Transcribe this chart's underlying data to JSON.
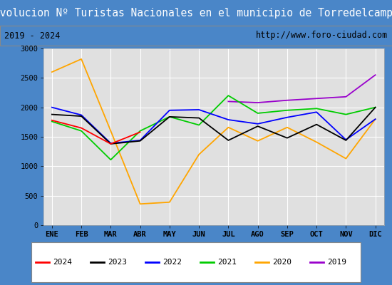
{
  "title": "Evolucion Nº Turistas Nacionales en el municipio de Torredelcampo",
  "subtitle_left": "2019 - 2024",
  "subtitle_right": "http://www.foro-ciudad.com",
  "months": [
    "ENE",
    "FEB",
    "MAR",
    "ABR",
    "MAY",
    "JUN",
    "JUL",
    "AGO",
    "SEP",
    "OCT",
    "NOV",
    "DIC"
  ],
  "ylim": [
    0,
    3000
  ],
  "yticks": [
    0,
    500,
    1000,
    1500,
    2000,
    2500,
    3000
  ],
  "series": {
    "2024": {
      "color": "#ff0000",
      "values": [
        1780,
        1650,
        1380,
        1580,
        null,
        null,
        null,
        null,
        null,
        null,
        null,
        null
      ]
    },
    "2023": {
      "color": "#000000",
      "values": [
        1880,
        1850,
        1380,
        1430,
        1840,
        1820,
        1440,
        1680,
        1480,
        1710,
        1440,
        2000
      ]
    },
    "2022": {
      "color": "#0000ff",
      "values": [
        2000,
        1870,
        1390,
        1440,
        1950,
        1960,
        1790,
        1720,
        1830,
        1920,
        1450,
        1800
      ]
    },
    "2021": {
      "color": "#00cc00",
      "values": [
        1760,
        1600,
        1110,
        1600,
        1840,
        1700,
        2200,
        1900,
        1950,
        1980,
        1880,
        2000
      ]
    },
    "2020": {
      "color": "#ffa500",
      "values": [
        2600,
        2820,
        1600,
        360,
        390,
        1200,
        1660,
        1430,
        1660,
        1410,
        1130,
        1800
      ]
    },
    "2019": {
      "color": "#9900cc",
      "values": [
        null,
        null,
        null,
        null,
        null,
        null,
        2100,
        2080,
        2120,
        2150,
        2180,
        2550
      ]
    }
  },
  "title_bg_color": "#4a86c8",
  "title_text_color": "#ffffff",
  "plot_bg_color": "#e0e0e0",
  "grid_color": "#ffffff",
  "subtitle_box_color": "#f0f0f0",
  "subtitle_font_color": "#000000",
  "title_fontsize": 10.5,
  "subtitle_fontsize": 8.5,
  "axis_label_fontsize": 7.5,
  "legend_fontsize": 8,
  "line_width": 1.3
}
